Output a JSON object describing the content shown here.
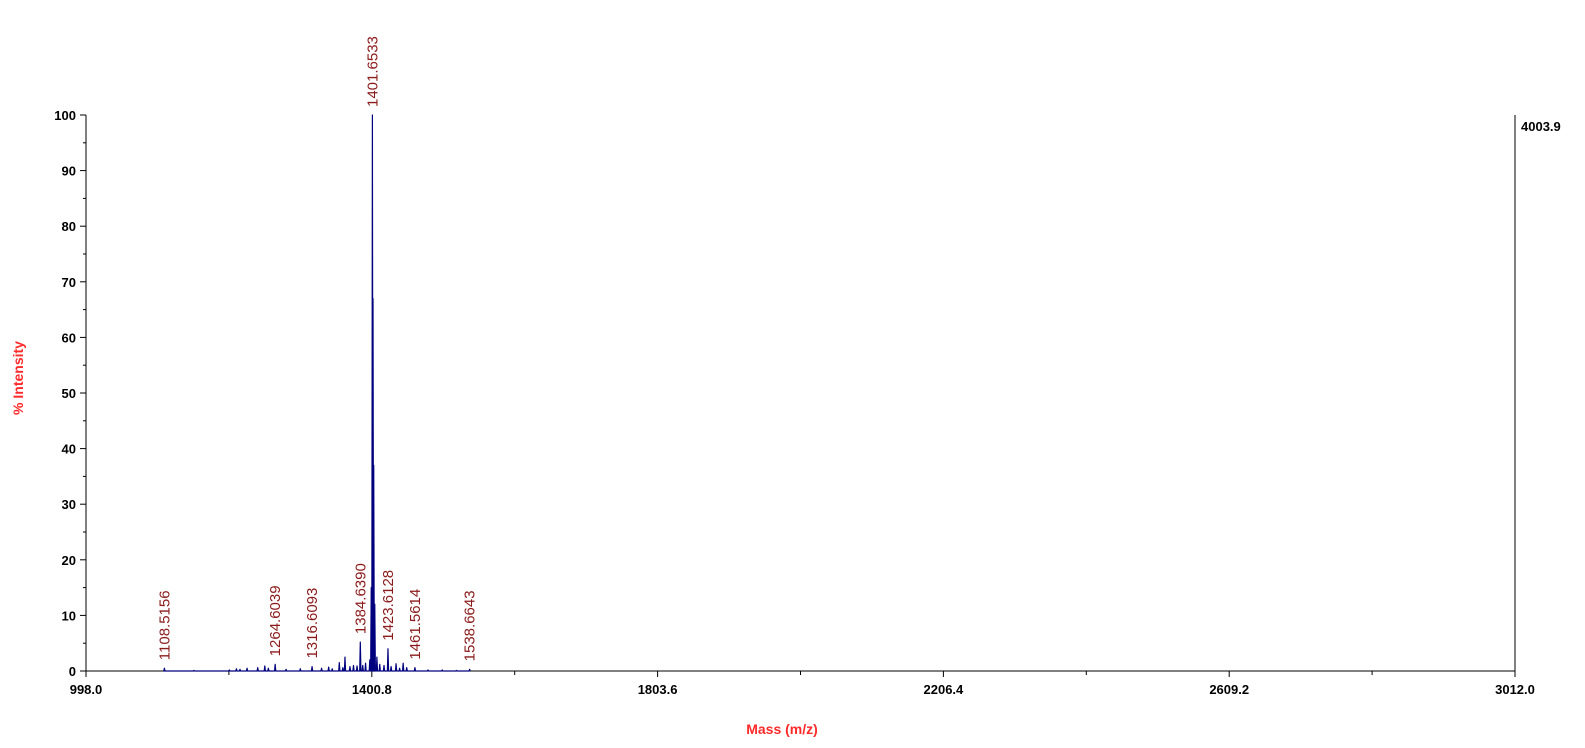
{
  "chart_data": {
    "type": "line",
    "title": "",
    "xlabel": "Mass (m/z)",
    "ylabel": "% Intensity",
    "xlim": [
      998.0,
      3012.0
    ],
    "ylim": [
      0,
      100
    ],
    "x_tick_labels": [
      "998.0",
      "1400.8",
      "1803.6",
      "2206.4",
      "2609.2",
      "3012.0"
    ],
    "y_tick_labels": [
      "0",
      "10",
      "20",
      "30",
      "40",
      "50",
      "60",
      "70",
      "80",
      "90",
      "100"
    ],
    "max_intensity_label": "4003.9",
    "line_color": "#00007f",
    "label_color": "#8b1a1a",
    "axis_title_color": "#ff2a2a",
    "grid": false,
    "series": [
      {
        "x": [
          1108.5,
          1150,
          1200,
          1210,
          1215,
          1225,
          1240,
          1250,
          1255,
          1264.6,
          1280,
          1300,
          1316.6,
          1330,
          1340,
          1345,
          1355,
          1360,
          1363,
          1370,
          1375,
          1380,
          1384.6,
          1388,
          1392,
          1398,
          1400.0,
          1401.65,
          1402.5,
          1403.5,
          1405,
          1408,
          1412,
          1418,
          1423.6,
          1428,
          1435,
          1440,
          1445,
          1450,
          1461.6,
          1480,
          1500,
          1520,
          1538.7
        ],
        "y": [
          0.5,
          0.1,
          0.2,
          0.4,
          0.3,
          0.5,
          0.6,
          0.9,
          0.5,
          1.2,
          0.3,
          0.4,
          0.8,
          0.5,
          0.7,
          0.4,
          1.5,
          0.6,
          2.5,
          0.8,
          1.0,
          0.9,
          5.2,
          1.0,
          1.4,
          2.0,
          15,
          100,
          67,
          37,
          12,
          2.5,
          1.2,
          1.0,
          4.0,
          0.8,
          1.3,
          0.5,
          1.4,
          0.6,
          0.6,
          0.2,
          0.2,
          0.1,
          0.3
        ]
      }
    ],
    "peak_labels": [
      {
        "x": 1108.5156,
        "y": 0.5,
        "label": "1108.5156"
      },
      {
        "x": 1264.6039,
        "y": 1.2,
        "label": "1264.6039"
      },
      {
        "x": 1316.6093,
        "y": 0.8,
        "label": "1316.6093"
      },
      {
        "x": 1384.639,
        "y": 5.2,
        "label": "1384.6390"
      },
      {
        "x": 1401.6533,
        "y": 100,
        "label": "1401.6533"
      },
      {
        "x": 1423.6128,
        "y": 4.0,
        "label": "1423.6128"
      },
      {
        "x": 1461.5614,
        "y": 0.6,
        "label": "1461.5614"
      },
      {
        "x": 1538.6643,
        "y": 0.3,
        "label": "1538.6643"
      }
    ]
  }
}
